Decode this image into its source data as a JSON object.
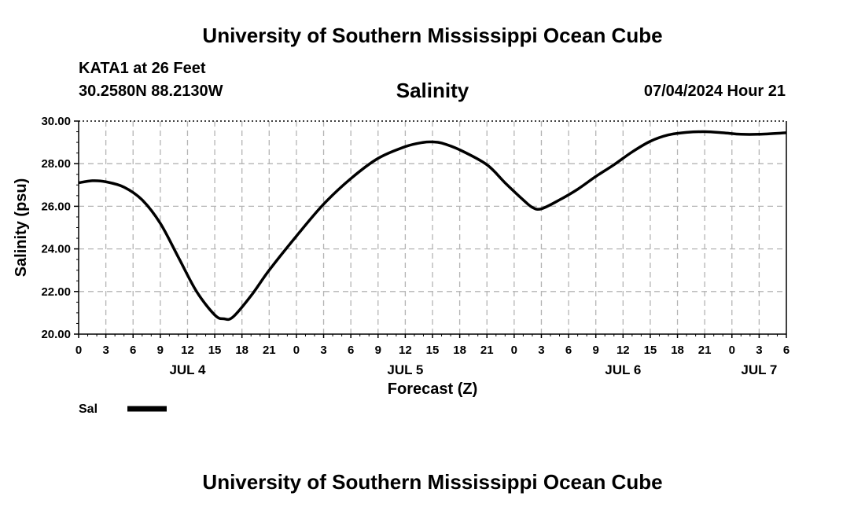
{
  "header": {
    "title": "University of Southern Mississippi Ocean Cube",
    "station": "KATA1 at 26 Feet",
    "coordinates": "30.2580N  88.2130W",
    "chart_title": "Salinity",
    "timestamp": "07/04/2024 Hour 21"
  },
  "footer": {
    "title": "University of Southern Mississippi Ocean Cube"
  },
  "colors": {
    "line": "#000000",
    "grid": "#b4b4b4",
    "background": "#ffffff"
  },
  "chart_data": {
    "type": "line",
    "title": "Salinity",
    "xlabel": "Forecast (Z)",
    "ylabel": "Salinity (psu)",
    "ylim": [
      20,
      30
    ],
    "yticks": [
      "20.00",
      "22.00",
      "24.00",
      "26.00",
      "28.00",
      "30.00"
    ],
    "xlim_hours": [
      0,
      78
    ],
    "xticks": [
      "0",
      "3",
      "6",
      "9",
      "12",
      "15",
      "18",
      "21",
      "0",
      "3",
      "6",
      "9",
      "12",
      "15",
      "18",
      "21",
      "0",
      "3",
      "6",
      "9",
      "12",
      "15",
      "18",
      "21",
      "0",
      "3",
      "6"
    ],
    "day_labels": [
      {
        "label": "JUL 4",
        "hour": 12
      },
      {
        "label": "JUL 5",
        "hour": 36
      },
      {
        "label": "JUL 6",
        "hour": 60
      },
      {
        "label": "JUL 7",
        "hour": 75
      }
    ],
    "grid": true,
    "legend": {
      "position": "bottom-left",
      "label": "Sal"
    },
    "series": [
      {
        "name": "Sal",
        "x": [
          0,
          1.5,
          3,
          5,
          7,
          9,
          11,
          13,
          15,
          16,
          17,
          19,
          21,
          24,
          27,
          30,
          33,
          36,
          38,
          39,
          40,
          42,
          45,
          47,
          49,
          50,
          51,
          53,
          55,
          57,
          59,
          61,
          63,
          65,
          67,
          69,
          71,
          73,
          75,
          78
        ],
        "values": [
          27.1,
          27.2,
          27.15,
          26.9,
          26.3,
          25.2,
          23.6,
          22.0,
          20.9,
          20.72,
          20.8,
          21.8,
          23.0,
          24.6,
          26.1,
          27.3,
          28.25,
          28.8,
          29.0,
          29.02,
          28.97,
          28.65,
          27.95,
          27.1,
          26.3,
          25.95,
          25.88,
          26.3,
          26.8,
          27.4,
          27.95,
          28.55,
          29.05,
          29.35,
          29.47,
          29.5,
          29.45,
          29.38,
          29.38,
          29.45
        ]
      }
    ]
  }
}
